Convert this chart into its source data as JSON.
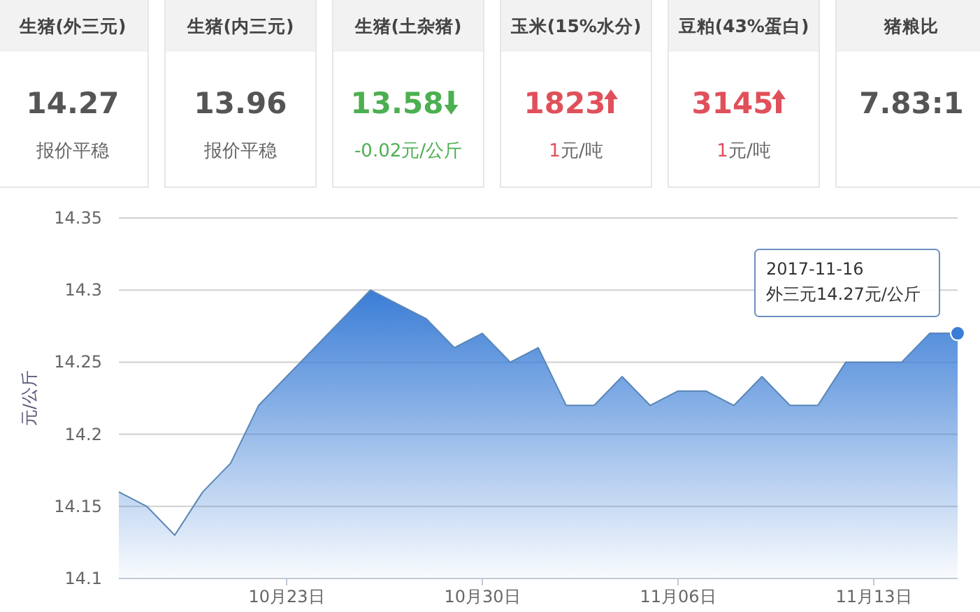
{
  "chart_data": [
    {
      "type": "other",
      "categories": [
        "生猪(外三元)",
        "生猪(内三元)",
        "生猪(土杂猪)",
        "玉米(15%水分)",
        "豆粕(43%蛋白)",
        "猪粮比"
      ],
      "value_labels": [
        "14.27",
        "13.96",
        "13.58",
        "1823",
        "3145",
        "7.83:1"
      ],
      "annotations": [
        "报价平稳",
        "报价平稳",
        "-0.02元/公斤",
        "1元/吨",
        "1元/吨"
      ]
    },
    {
      "type": "area",
      "ylabel": "元/公斤",
      "x": [
        "2017-10-17",
        "2017-10-18",
        "2017-10-19",
        "2017-10-20",
        "2017-10-21",
        "2017-10-22",
        "2017-10-23",
        "2017-10-24",
        "2017-10-25",
        "2017-10-26",
        "2017-10-27",
        "2017-10-28",
        "2017-10-29",
        "2017-10-30",
        "2017-10-31",
        "2017-11-01",
        "2017-11-02",
        "2017-11-03",
        "2017-11-04",
        "2017-11-05",
        "2017-11-06",
        "2017-11-07",
        "2017-11-08",
        "2017-11-09",
        "2017-11-10",
        "2017-11-11",
        "2017-11-12",
        "2017-11-13",
        "2017-11-14",
        "2017-11-15",
        "2017-11-16"
      ],
      "series": [
        {
          "color": "#3a7dd6",
          "values": [
            14.16,
            14.15,
            14.13,
            14.16,
            14.18,
            14.22,
            14.24,
            14.26,
            14.28,
            14.3,
            14.29,
            14.28,
            14.26,
            14.27,
            14.25,
            14.26,
            14.22,
            14.22,
            14.24,
            14.22,
            14.23,
            14.23,
            14.22,
            14.24,
            14.22,
            14.22,
            14.25,
            14.25,
            14.25,
            14.27,
            14.27
          ]
        }
      ],
      "xlim": [
        "2017-10-17",
        "2017-11-16"
      ],
      "xticks": [
        {
          "value": "2017-10-23",
          "label": "10月23日"
        },
        {
          "value": "2017-10-30",
          "label": "10月30日"
        },
        {
          "value": "2017-11-06",
          "label": "11月06日"
        },
        {
          "value": "2017-11-13",
          "label": "11月13日"
        }
      ],
      "ylim": [
        14.1,
        14.35
      ],
      "yticks": [
        14.1,
        14.15,
        14.2,
        14.25,
        14.3,
        14.35
      ],
      "grid": "y",
      "annotations": [
        {
          "text": "2017-11-16\n外三元14.27元/公斤",
          "x": "2017-11-16",
          "y": 14.27
        }
      ]
    }
  ]
}
